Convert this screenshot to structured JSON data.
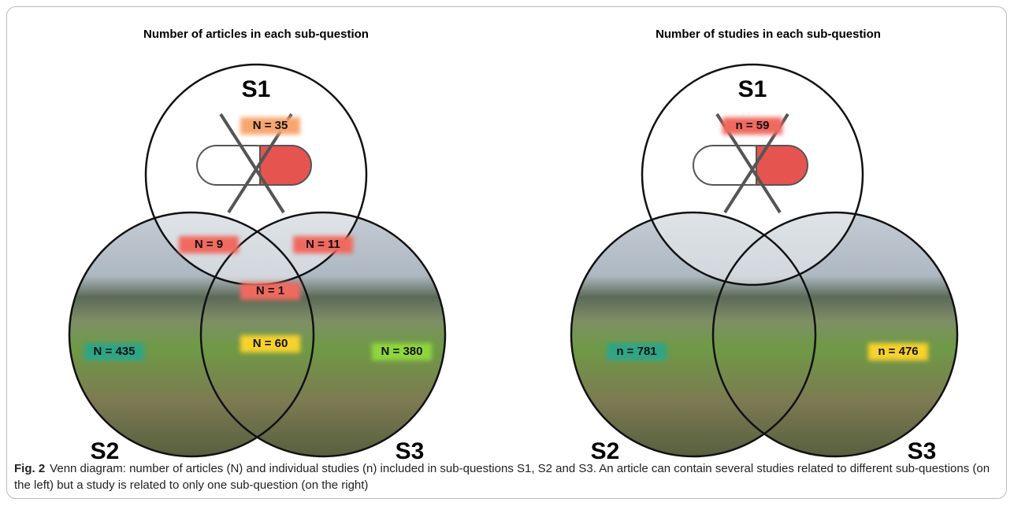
{
  "figures": [
    {
      "title": "Number of articles in each sub-question",
      "sets": [
        "S1",
        "S2",
        "S3"
      ],
      "regions": [
        {
          "label": "N = 35",
          "color": "#f7a66e"
        },
        {
          "label": "N = 9",
          "color": "#f0695e"
        },
        {
          "label": "N = 11",
          "color": "#f0695e"
        },
        {
          "label": "N = 1",
          "color": "#f0695e"
        },
        {
          "label": "N = 435",
          "color": "#2fa587"
        },
        {
          "label": "N = 60",
          "color": "#f7d22c"
        },
        {
          "label": "N = 380",
          "color": "#8fd63c"
        }
      ]
    },
    {
      "title": "Number of studies in each sub-question",
      "sets": [
        "S1",
        "S2",
        "S3"
      ],
      "regions": [
        {
          "label": "n = 59",
          "color": "#f0695e"
        },
        {
          "label": "n = 781",
          "color": "#2fa587"
        },
        {
          "label": "n = 476",
          "color": "#f7d22c"
        }
      ]
    }
  ],
  "caption": {
    "label": "Fig. 2",
    "text": "Venn diagram: number of articles (N) and individual studies (n) included in sub-questions S1, S2 and S3. An article can contain several studies related to different sub-questions (on the left) but a study is related to only one sub-question (on the right)"
  }
}
